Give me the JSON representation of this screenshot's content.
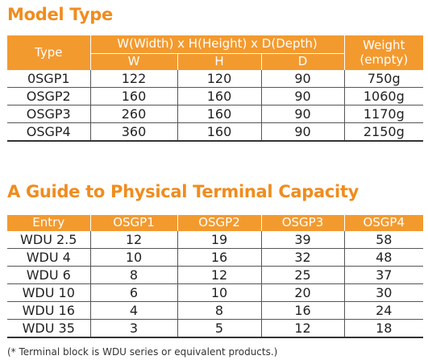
{
  "model_type": {
    "title": "Model Type",
    "header": {
      "type": "Type",
      "dimensions": "W(Width) x H(Height) x D(Depth)",
      "w": "W",
      "h": "H",
      "d": "D",
      "weight_line1": "Weight",
      "weight_line2": "(empty)"
    },
    "rows": [
      {
        "type": "0SGP1",
        "w": "122",
        "h": "120",
        "d": "90",
        "weight": "750g"
      },
      {
        "type": "OSGP2",
        "w": "160",
        "h": "160",
        "d": "90",
        "weight": "1060g"
      },
      {
        "type": "OSGP3",
        "w": "260",
        "h": "160",
        "d": "90",
        "weight": "1170g"
      },
      {
        "type": "OSGP4",
        "w": "360",
        "h": "160",
        "d": "90",
        "weight": "2150g"
      }
    ]
  },
  "terminal_capacity": {
    "title": "A Guide to Physical Terminal Capacity",
    "columns": [
      "Entry",
      "OSGP1",
      "OSGP2",
      "OSGP3",
      "OSGP4"
    ],
    "rows": [
      [
        "WDU 2.5",
        "12",
        "19",
        "39",
        "58"
      ],
      [
        "WDU 4",
        "10",
        "16",
        "32",
        "48"
      ],
      [
        "WDU 6",
        "8",
        "12",
        "25",
        "37"
      ],
      [
        "WDU 10",
        "6",
        "10",
        "20",
        "30"
      ],
      [
        "WDU 16",
        "4",
        "8",
        "16",
        "24"
      ],
      [
        "WDU 35",
        "3",
        "5",
        "12",
        "18"
      ]
    ]
  },
  "note": "(* Terminal block is WDU series or equivalent products.)",
  "colors": {
    "accent": "#f08c1e",
    "header_bg": "#f39a2f"
  }
}
